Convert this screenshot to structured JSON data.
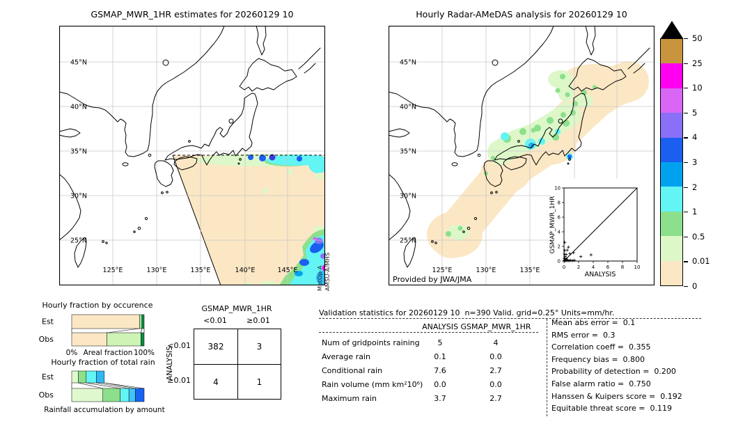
{
  "left_map": {
    "title": "GSMAP_MWR_1HR estimates for 20260129 10",
    "lat_labels": [
      "45°N",
      "40°N",
      "35°N",
      "30°N",
      "25°N"
    ],
    "lon_labels": [
      "125°E",
      "130°E",
      "135°E",
      "140°E",
      "145°E"
    ],
    "satellite_lines": [
      "MetOp-A",
      "AMSU-A/MHS"
    ]
  },
  "right_map": {
    "title": "Hourly Radar-AMeDAS analysis for 20260129 10",
    "lat_labels": [
      "45°N",
      "40°N",
      "35°N",
      "30°N",
      "25°N"
    ],
    "lon_labels": [
      "125°E",
      "130°E",
      "135°E"
    ],
    "provider": "Provided by JWA/JMA"
  },
  "colorbar": {
    "units": "mm/hr",
    "labels": [
      "50",
      "25",
      "10",
      "5",
      "4",
      "3",
      "2",
      "1",
      "0.5",
      "0.01",
      "0"
    ],
    "colors": [
      "#c8953e",
      "#ff00f0",
      "#d966f5",
      "#8a70f8",
      "#1a5ff0",
      "#00a2f0",
      "#63f4f4",
      "#8ce08c",
      "#ddf7c9",
      "#fbe7c4"
    ],
    "overflow_color": "#000000"
  },
  "contingency": {
    "col_header": "GSMAP_MWR_1HR",
    "row_header": "ANALYSIS",
    "col_labels": [
      "<0.01",
      "≥0.01"
    ],
    "row_labels": [
      "<0.01",
      "≥0.01"
    ],
    "values": [
      [
        "382",
        "3"
      ],
      [
        "4",
        "1"
      ]
    ]
  },
  "validation": {
    "header": "Validation statistics for 20260129 10  n=390 Valid. grid=0.25° Units=mm/hr.",
    "columns": [
      "ANALYSIS",
      "GSMAP_MWR_1HR"
    ],
    "rows": [
      {
        "label": "Num of gridpoints raining",
        "analysis": "5",
        "gsmap": "4"
      },
      {
        "label": "Average rain",
        "analysis": "0.1",
        "gsmap": "0.0"
      },
      {
        "label": "Conditional rain",
        "analysis": "7.6",
        "gsmap": "2.7"
      },
      {
        "label": "Rain volume (mm km²10⁶)",
        "analysis": "0.0",
        "gsmap": "0.0"
      },
      {
        "label": "Maximum rain",
        "analysis": "3.7",
        "gsmap": "2.7"
      }
    ],
    "metrics": [
      {
        "label": "Mean abs error =",
        "value": "0.1"
      },
      {
        "label": "RMS error =",
        "value": "0.3"
      },
      {
        "label": "Correlation coeff =",
        "value": "0.355"
      },
      {
        "label": "Frequency bias =",
        "value": "0.800"
      },
      {
        "label": "Probability of detection =",
        "value": "0.200"
      },
      {
        "label": "False alarm ratio =",
        "value": "0.750"
      },
      {
        "label": "Hanssen & Kuipers score =",
        "value": "0.192"
      },
      {
        "label": "Equitable threat score =",
        "value": "0.119"
      }
    ]
  },
  "chart_data": [
    {
      "type": "bar",
      "id": "occurrence",
      "title": "Hourly fraction by occurence",
      "xlabel": "Areal fraction",
      "xticks": [
        "0%",
        "100%"
      ],
      "xlim": [
        0,
        100
      ],
      "rows": [
        {
          "label": "Est",
          "segments": [
            {
              "color": "#fbe7c4",
              "pct": 93.5
            },
            {
              "color": "#9be49b",
              "pct": 3.5
            },
            {
              "color": "#0e8c46",
              "pct": 3
            }
          ]
        },
        {
          "label": "Obs",
          "segments": [
            {
              "color": "#fbe7c4",
              "pct": 48.5
            },
            {
              "color": "#cdf3b5",
              "pct": 47
            },
            {
              "color": "#0e8c46",
              "pct": 4.5
            }
          ]
        }
      ]
    },
    {
      "type": "bar",
      "id": "total_rain",
      "title": "Hourly fraction of total rain",
      "caption": "Rainfall accumulation by amount",
      "xlim": [
        0,
        100
      ],
      "rows": [
        {
          "label": "Est",
          "segments": [
            {
              "color": "#dff8cd",
              "pct": 9
            },
            {
              "color": "#8ce08c",
              "pct": 11
            },
            {
              "color": "#63f4f4",
              "pct": 14
            },
            {
              "color": "#2fb9f2",
              "pct": 11
            }
          ]
        },
        {
          "label": "Obs",
          "segments": [
            {
              "color": "#dff8cd",
              "pct": 43
            },
            {
              "color": "#8ce08c",
              "pct": 24
            },
            {
              "color": "#63f4f4",
              "pct": 12
            },
            {
              "color": "#3ec6f6",
              "pct": 9
            },
            {
              "color": "#1863f2",
              "pct": 12
            }
          ]
        }
      ]
    },
    {
      "type": "scatter",
      "id": "inset_scatter",
      "xlabel": "ANALYSIS",
      "ylabel": "GSMAP_MWR_1HR",
      "xlim": [
        0,
        10
      ],
      "ylim": [
        0,
        10
      ],
      "xticks": [
        0,
        2,
        4,
        6,
        8,
        10
      ],
      "yticks": [
        0,
        2,
        4,
        6,
        8,
        10
      ],
      "identity_line": true,
      "points": [
        [
          0.05,
          0.05
        ],
        [
          0.1,
          0.1
        ],
        [
          0.15,
          0.05
        ],
        [
          0.2,
          0.2
        ],
        [
          0.3,
          0.05
        ],
        [
          0.3,
          0.3
        ],
        [
          0.45,
          0.15
        ],
        [
          0.55,
          0.05
        ],
        [
          0.7,
          0.05
        ],
        [
          0.9,
          0.1
        ],
        [
          1.15,
          0.05
        ],
        [
          1.4,
          0.1
        ],
        [
          0.05,
          0.35
        ],
        [
          0.15,
          0.6
        ],
        [
          0.05,
          0.95
        ],
        [
          0.3,
          0.9
        ],
        [
          0.1,
          1.45
        ],
        [
          0.45,
          1.5
        ],
        [
          0.6,
          1.9
        ],
        [
          0.1,
          2.55
        ],
        [
          0.8,
          1.0
        ],
        [
          1.3,
          1.15
        ],
        [
          2.3,
          0.6
        ],
        [
          3.7,
          0.85
        ]
      ]
    }
  ]
}
